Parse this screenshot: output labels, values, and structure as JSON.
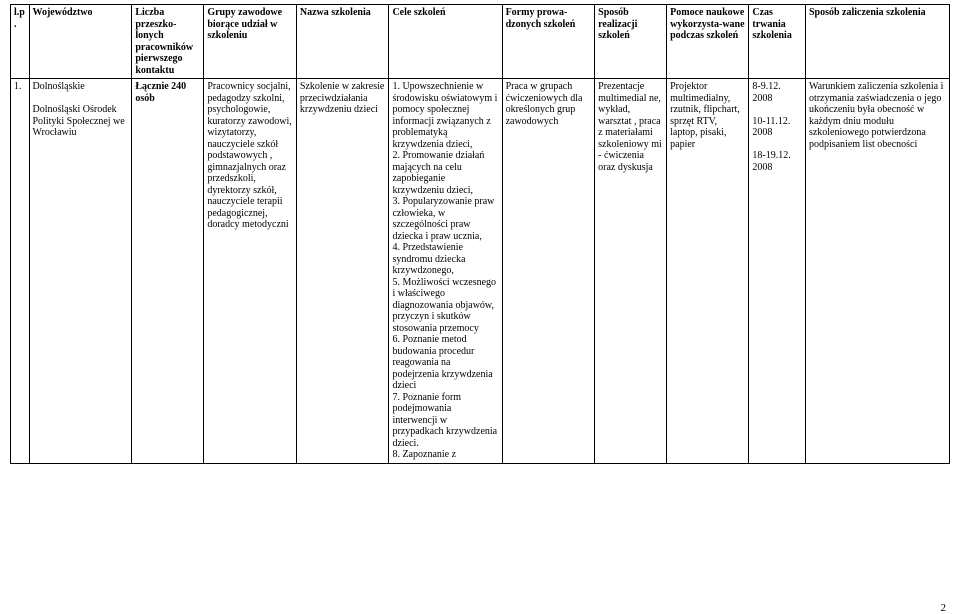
{
  "headers": {
    "lp": "l.p.",
    "woj": "Województwo",
    "lic": "Liczba przeszko-lonych pracowników pierwszego kontaktu",
    "gru": "Grupy zawodowe biorące udział w szkoleniu",
    "naz": "Nazwa szkolenia",
    "cel": "Cele szkoleń",
    "for": "Formy prowa-dzonych szkoleń",
    "spr": "Sposób realizacji szkoleń",
    "pom": "Pomoce naukowe wykorzysta-wane podczas szkoleń",
    "cza": "Czas trwania szkolenia",
    "spz": "Sposób zaliczenia szkolenia"
  },
  "row": {
    "lp": "1.",
    "woj": "Dolnośląskie\n\nDolnośląski Ośrodek Polityki Społecznej we Wrocławiu",
    "lic": "Łącznie 240 osób",
    "gru": "Pracownicy socjalni, pedagodzy szkolni, psychologowie, kuratorzy zawodowi, wizytatorzy, nauczyciele szkół podstawowych , gimnazjalnych oraz przedszkoli, dyrektorzy szkół, nauczyciele terapii pedagogicznej, doradcy metodyczni",
    "naz": "Szkolenie w zakresie przeciwdziałania krzywdzeniu dzieci",
    "cel": "1. Upowszechnienie w środowisku oświatowym i pomocy społecznej informacji związanych z problematyką krzywdzenia dzieci,\n2. Promowanie działań mających na celu zapobieganie krzywdzeniu dzieci,\n3. Popularyzowanie praw człowieka, w szczególności praw dziecka i praw ucznia,\n4. Przedstawienie syndromu dziecka krzywdzonego,\n5. Możliwości wczesnego i właściwego diagnozowania objawów, przyczyn i skutków stosowania przemocy\n6. Poznanie metod budowania procedur reagowania na podejrzenia krzywdzenia dzieci\n7. Poznanie form podejmowania interwencji w przypadkach krzywdzenia dzieci.\n8. Zapoznanie z",
    "for": "Praca w grupach ćwiczeniowych dla określonych grup zawodowych",
    "spr": "Prezentacje multimedial ne, wykład, warsztat , praca z materiałami szkoleniowy mi - ćwiczenia oraz dyskusja",
    "pom": "Projektor multimedialny, rzutnik, flipchart, sprzęt RTV, laptop, pisaki, papier",
    "cza": "8-9.12.\n2008\n\n10-11.12.\n2008\n\n18-19.12.\n2008",
    "spz": "Warunkiem zaliczenia szkolenia i otrzymania zaświadczenia o  jego ukończeniu była obecność w każdym dniu modułu szkoleniowego potwierdzona podpisaniem list obecności"
  },
  "page_number": "2"
}
